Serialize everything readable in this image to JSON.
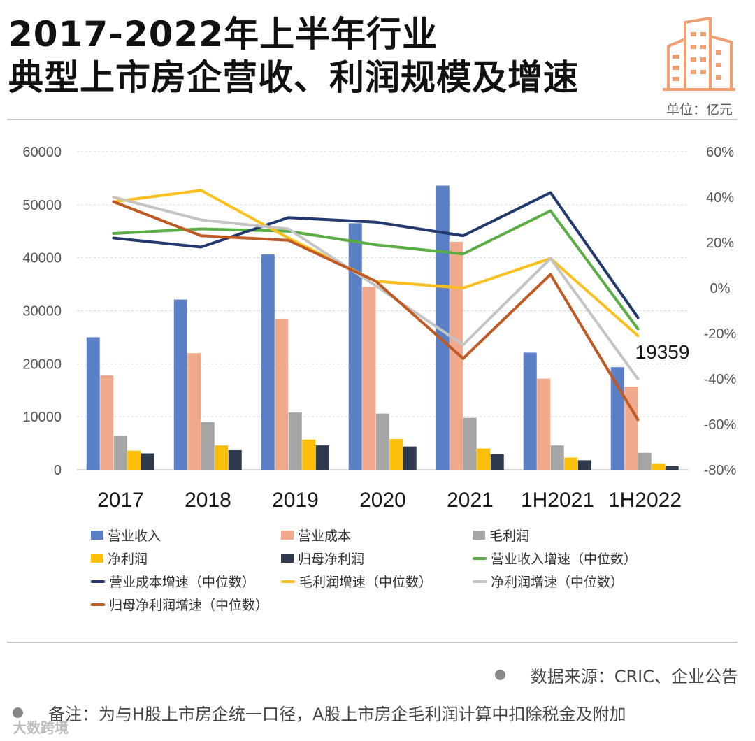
{
  "header": {
    "title_line1": "2017-2022年上半年行业",
    "title_line2": "典型上市房企营收、利润规模及增速",
    "unit": "单位：亿元"
  },
  "footer": {
    "source": "数据来源：CRIC、企业公告",
    "note": "备注：为与H股上市房企统一口径，A股上市房企毛利润计算中扣除税金及附加",
    "watermark": "大数跨境"
  },
  "colors": {
    "revenue": "#5b7fc4",
    "cost": "#f0a98a",
    "gross": "#a6a6a6",
    "net": "#fbbf0a",
    "parent_net": "#303a4e",
    "revenue_growth": "#5aad45",
    "cost_growth": "#23396e",
    "gross_growth": "#fbbf1e",
    "net_growth": "#c4c4c4",
    "parent_growth": "#c05a25"
  },
  "chart_data": {
    "type": "bar",
    "categories": [
      "2017",
      "2018",
      "2019",
      "2020",
      "2021",
      "1H2021",
      "1H2022"
    ],
    "y_left": {
      "min": 0,
      "max": 60000,
      "ticks": [
        0,
        10000,
        20000,
        30000,
        40000,
        50000,
        60000
      ],
      "tick_labels": [
        "0",
        "10000",
        "20000",
        "30000",
        "40000",
        "50000",
        "60000"
      ]
    },
    "y_right": {
      "min": -80,
      "max": 60,
      "ticks": [
        -80,
        -60,
        -40,
        -20,
        0,
        20,
        40,
        60
      ],
      "tick_labels": [
        "-80%",
        "-60%",
        "-40%",
        "-20%",
        "0%",
        "20%",
        "40%",
        "60%"
      ]
    },
    "bar_series": [
      {
        "name": "营业收入",
        "color_key": "revenue",
        "values": [
          25000,
          32100,
          40600,
          46500,
          53600,
          22100,
          19359
        ]
      },
      {
        "name": "营业成本",
        "color_key": "cost",
        "values": [
          17800,
          22000,
          28500,
          34500,
          43000,
          17200,
          15700
        ]
      },
      {
        "name": "毛利润",
        "color_key": "gross",
        "values": [
          6400,
          9000,
          10800,
          10600,
          9800,
          4600,
          3200
        ]
      },
      {
        "name": "净利润",
        "color_key": "net",
        "values": [
          3600,
          4600,
          5700,
          5800,
          4000,
          2300,
          1100
        ]
      },
      {
        "name": "归母净利润",
        "color_key": "parent_net",
        "values": [
          3100,
          3700,
          4600,
          4400,
          2900,
          1800,
          700
        ]
      }
    ],
    "line_series": [
      {
        "name": "营业收入增速（中位数）",
        "color_key": "revenue_growth",
        "values": [
          24,
          26,
          25,
          19,
          15,
          34,
          -18
        ]
      },
      {
        "name": "营业成本增速（中位数）",
        "color_key": "cost_growth",
        "values": [
          22,
          18,
          31,
          29,
          23,
          42,
          -13
        ]
      },
      {
        "name": "毛利润增速（中位数）",
        "color_key": "gross_growth",
        "values": [
          38,
          43,
          22,
          3,
          0,
          13,
          -21
        ]
      },
      {
        "name": "净利润增速（中位数）",
        "color_key": "net_growth",
        "values": [
          40,
          30,
          26,
          1,
          -25,
          13,
          -40
        ]
      },
      {
        "name": "归母净利润增速（中位数）",
        "color_key": "parent_growth",
        "values": [
          38,
          23,
          21,
          3,
          -31,
          6,
          -58
        ]
      }
    ],
    "annotations": [
      {
        "category": "1H2022",
        "series": "营业收入",
        "label": "19359"
      }
    ]
  }
}
